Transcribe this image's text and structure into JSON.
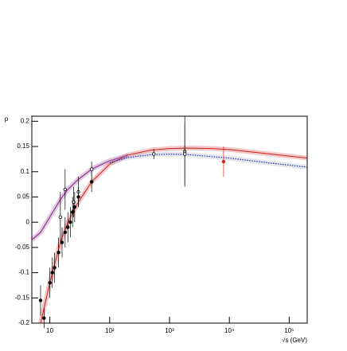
{
  "chart_data": {
    "type": "line",
    "y_label": "ρ",
    "x_label": "√s (GeV)",
    "log_x": true,
    "xlim": [
      5,
      200000
    ],
    "ylim": [
      -0.2,
      0.21
    ],
    "xticks": [
      10,
      {
        "value": 100,
        "label": "10²"
      },
      {
        "value": 1000,
        "label": "10³"
      },
      {
        "value": 10000,
        "label": "10⁴"
      },
      {
        "value": 100000,
        "label": "10⁵"
      }
    ],
    "yticks": [
      -0.2,
      -0.15,
      -0.1,
      -0.05,
      0,
      0.05,
      0.1,
      0.15,
      0.2
    ],
    "series": [
      {
        "type": "line",
        "color": "#cc2222",
        "dashed": false,
        "x": [
          7,
          10,
          15,
          20,
          30,
          50,
          100,
          200,
          500,
          1000,
          2000,
          5000,
          10000,
          50000,
          200000
        ],
        "values": [
          -0.2,
          -0.12,
          -0.04,
          0.0,
          0.04,
          0.08,
          0.115,
          0.133,
          0.143,
          0.146,
          0.147,
          0.146,
          0.144,
          0.135,
          0.127
        ]
      },
      {
        "type": "line",
        "color": "#882288",
        "dashed": false,
        "x": [
          5,
          7,
          10,
          15,
          20,
          30,
          50,
          100,
          200
        ],
        "values": [
          -0.035,
          -0.02,
          0.01,
          0.045,
          0.065,
          0.085,
          0.105,
          0.122,
          0.132
        ]
      },
      {
        "type": "line",
        "color": "#2233cc",
        "dashed": true,
        "x": [
          100,
          200,
          500,
          1000,
          2000,
          5000,
          10000,
          50000,
          200000
        ],
        "values": [
          0.118,
          0.128,
          0.134,
          0.135,
          0.134,
          0.13,
          0.127,
          0.117,
          0.109
        ]
      },
      {
        "type": "scatter",
        "marker": "open",
        "color": "#000000",
        "x": [
          15,
          18,
          25,
          30,
          50,
          546,
          1800,
          1800
        ],
        "values": [
          0.01,
          0.065,
          0.04,
          0.06,
          0.105,
          0.135,
          0.14,
          0.135
        ],
        "errors": [
          0.05,
          0.04,
          0.03,
          0.03,
          0.015,
          0.01,
          0.07,
          0.06
        ]
      },
      {
        "type": "scatter",
        "marker": "filled",
        "color": "#000000",
        "x": [
          7,
          8,
          10,
          11,
          12,
          14,
          16,
          18,
          20,
          22,
          24,
          26,
          30,
          50
        ],
        "values": [
          -0.155,
          -0.19,
          -0.12,
          -0.1,
          -0.09,
          -0.06,
          -0.04,
          -0.02,
          -0.01,
          0.0,
          0.02,
          0.03,
          0.05,
          0.08
        ],
        "errors": [
          0.03,
          0.02,
          0.03,
          0.03,
          0.03,
          0.03,
          0.03,
          0.03,
          0.03,
          0.03,
          0.03,
          0.03,
          0.02,
          0.02
        ]
      },
      {
        "type": "scatter",
        "marker": "filled",
        "color": "#dd2222",
        "x": [
          8000
        ],
        "values": [
          0.12
        ],
        "errors": [
          0.03
        ]
      }
    ]
  }
}
